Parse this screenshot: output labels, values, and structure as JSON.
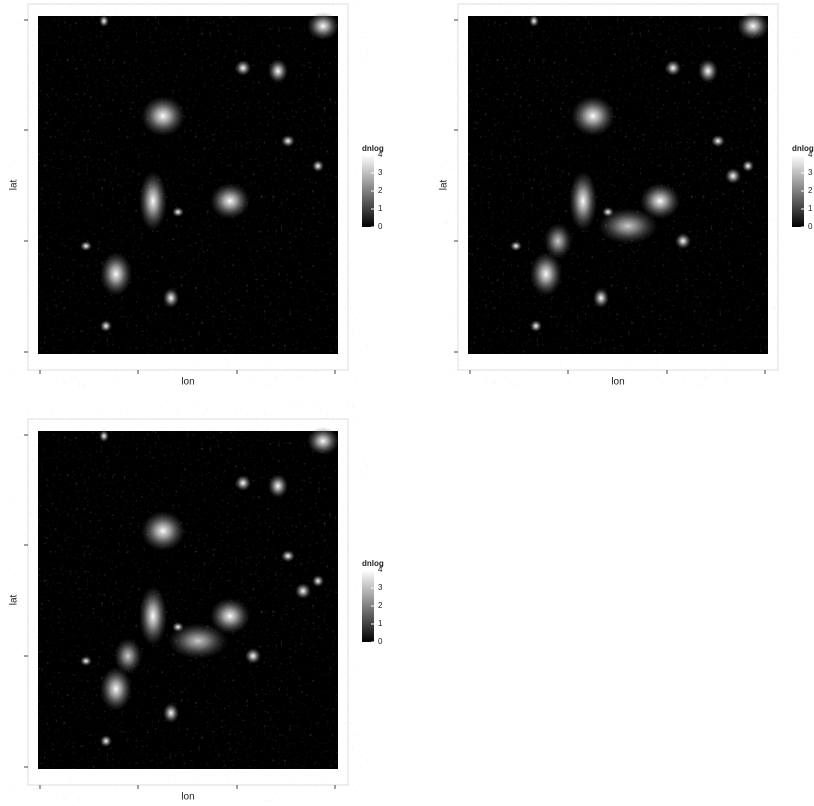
{
  "chart_data": [
    {
      "type": "raster",
      "xlabel": "lon",
      "ylabel": "lat",
      "legend_title": "dnlog",
      "clim": [
        0,
        4
      ],
      "cticks": [
        0,
        1,
        2,
        3,
        4
      ],
      "colormap": [
        "#000000",
        "#ffffff"
      ]
    },
    {
      "type": "raster",
      "xlabel": "lon",
      "ylabel": "lat",
      "legend_title": "dnlog",
      "clim": [
        0,
        4
      ],
      "cticks": [
        0,
        1,
        2,
        3,
        4
      ],
      "colormap": [
        "#000000",
        "#ffffff"
      ]
    },
    {
      "type": "raster",
      "xlabel": "lon",
      "ylabel": "lat",
      "legend_title": "dnlog",
      "clim": [
        0,
        4
      ],
      "cticks": [
        0,
        1,
        2,
        3,
        4
      ],
      "colormap": [
        "#000000",
        "#ffffff"
      ]
    }
  ]
}
